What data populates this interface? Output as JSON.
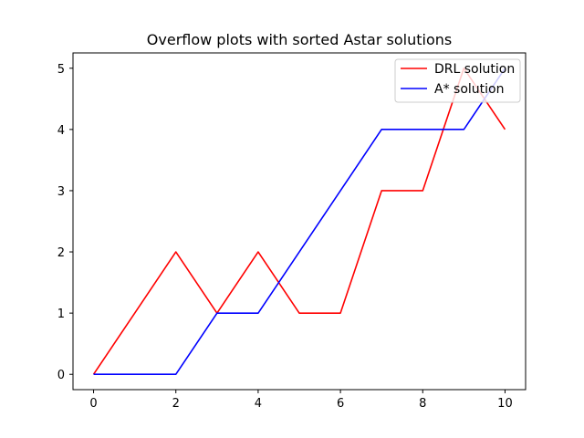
{
  "chart_data": {
    "type": "line",
    "title": "Overflow plots with sorted Astar solutions",
    "xlabel": "",
    "ylabel": "",
    "xlim": [
      -0.5,
      10.5
    ],
    "ylim": [
      -0.25,
      5.25
    ],
    "xticks": [
      0,
      2,
      4,
      6,
      8,
      10
    ],
    "yticks": [
      0,
      1,
      2,
      3,
      4,
      5
    ],
    "grid": false,
    "legend_position": "top-right",
    "x": [
      0,
      1,
      2,
      3,
      4,
      5,
      6,
      7,
      8,
      9,
      10
    ],
    "series": [
      {
        "name": "DRL solution",
        "color": "#ff0000",
        "values": [
          0,
          1,
          2,
          1,
          2,
          1,
          1,
          3,
          3,
          5,
          4
        ]
      },
      {
        "name": "A* solution",
        "color": "#0000ff",
        "values": [
          0,
          0,
          0,
          1,
          1,
          2,
          3,
          4,
          4,
          4,
          5
        ]
      }
    ]
  }
}
